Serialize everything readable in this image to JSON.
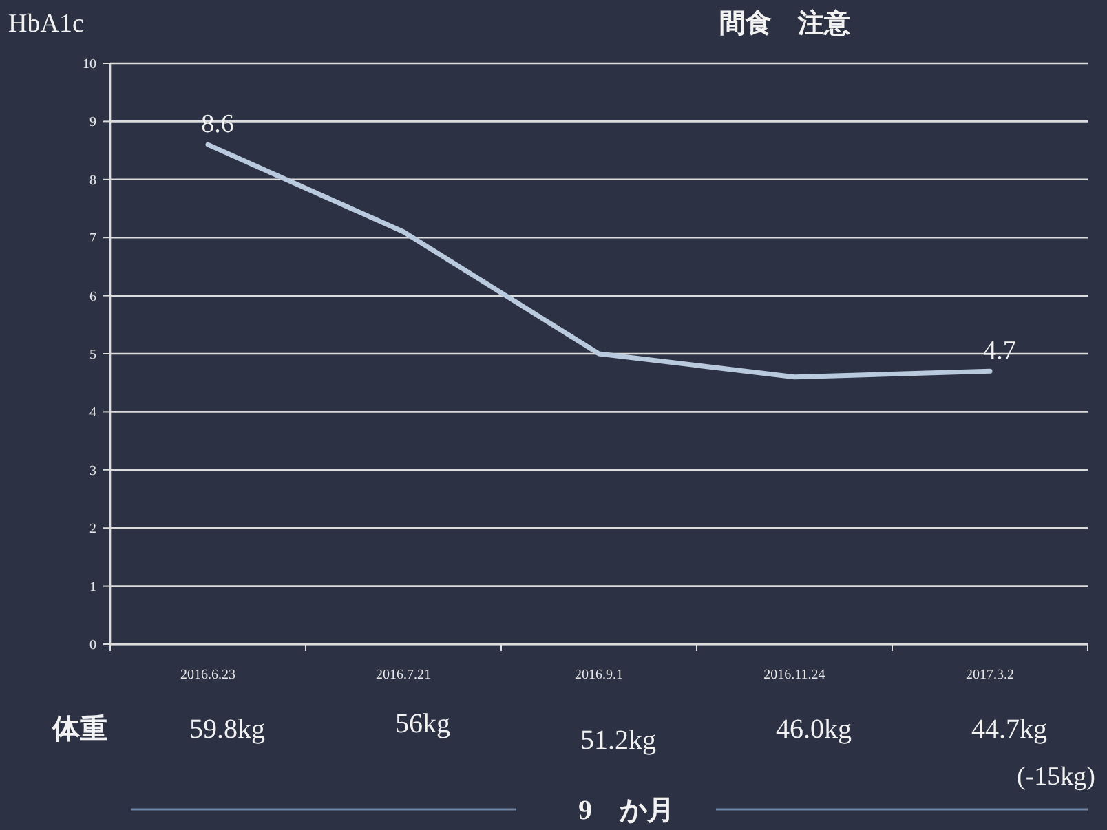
{
  "chart_data": {
    "type": "line",
    "title": "間食　注意",
    "ylabel": "HbA1c",
    "categories": [
      "2016.6.23",
      "2016.7.21",
      "2016.9.1",
      "2016.11.24",
      "2017.3.2"
    ],
    "series": [
      {
        "color": "#b9c9de",
        "values": [
          8.6,
          7.1,
          5.0,
          4.6,
          4.7
        ],
        "value_labels": [
          "8.6",
          null,
          null,
          null,
          "4.7"
        ]
      }
    ],
    "ylim": [
      0,
      10
    ],
    "yticks": [
      0,
      1,
      2,
      3,
      4,
      5,
      6,
      7,
      8,
      9,
      10
    ],
    "grid": "y",
    "annotations": [
      "体重",
      "59.8kg",
      "56kg",
      "51.2kg",
      "46.0kg",
      "44.7kg",
      "(-15kg)",
      "9　か月"
    ]
  }
}
